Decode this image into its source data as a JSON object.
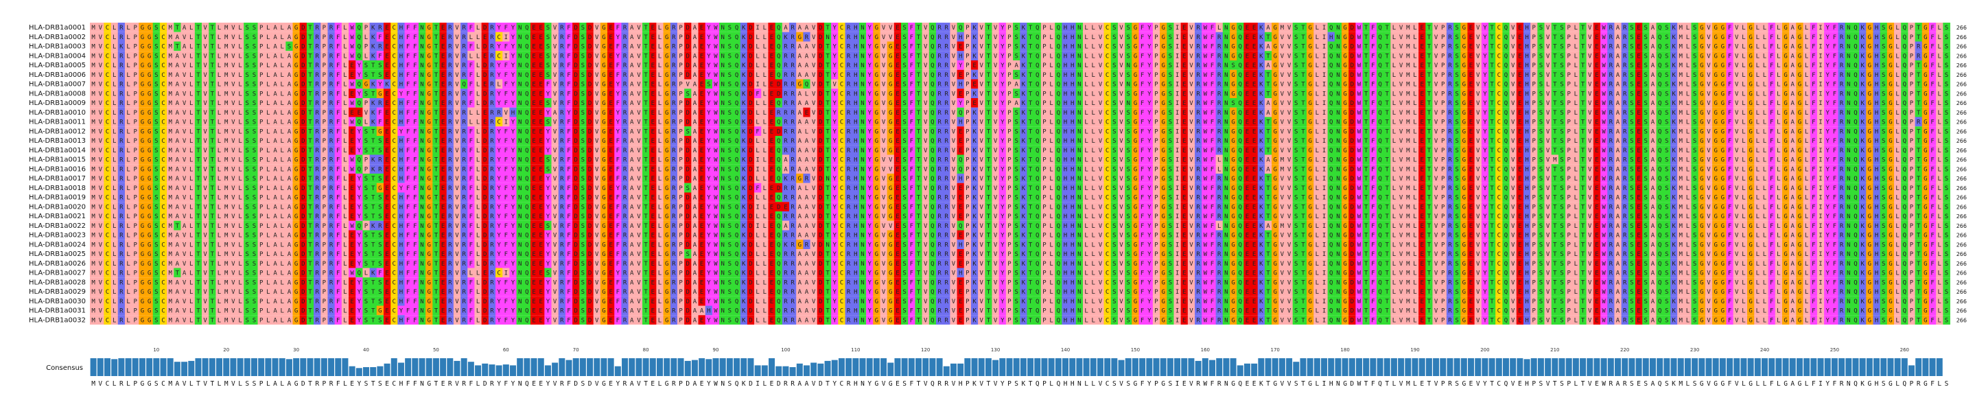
{
  "alignment": {
    "sequences": [
      {
        "name": "HLA-DRB1a0001",
        "seq": "MVCLRLPGGSCMTALTVTLMVLSSPLALAGDTRPRFLWQPKRECHFFNGTERVRFLDRYFYNQEESVRFDSDVGEFRAVTELGRPDAEYWNSQKDILEQARAAVDTYCRHNYGVVESFTVQRRVQPKVTVYPSKTQPLQHHNLLVCSVSGFYPGSIEVRWFLNGQEEKAGMVSTGLIQNGDWTFQTLVMLETVPRSGEVYTCQVEHPSVTSPLTVEWRARSESAQSKMLSGVGGFVLGLLFLGAGLFIYFRNQKGHSGLQPTGFLS",
        "len": "266"
      },
      {
        "name": "HLA-DRB1a0002",
        "seq": "MVCLRLPGGSCMAVLTVTLMVLSSPLALAGDTRPRFLWQLKFECHFFNGTERVRLLERCIYNQEESVRFDSDVGEYRAVTELGRPDAEYWNSQKDLLEQKRGRVDNYCRHNYGVVESFTVQRRVHPKVTVYPSKTQPLQHHNLLVCSVSGFYPGSIEVRWFRNGQEEKTGVVSTGLIHNGDWTFQTLVMLETVPRSGEVYTCQVEHPSVTSPLTVEWRARSESAQSKMLSGVGGFVLGLLFLGAGLFIYFRNQKGHSGLQPTGFLS",
        "len": "266"
      },
      {
        "name": "HLA-DRB1a0003",
        "seq": "MVCLKLPGGSCMTALTVTLMVLSSPLALSGDTRPRFLWQPKRECHFFNGTERVRFLDRYFYNQEESVRFDSDVGEFRAVTELGRPDAEYWNSQKDLLEQRRAAVDTYCRHNYGVGESFTVQRRVEPKVTVYPSKTQPLQHHNLLVCSVSGFYPGSIEVRWFRNGQEEKAGVVSTGLIQNGDWTFQTLVMLETVPRSGEVYTCQVEHPSVTSPLTVEWRARSESAQSKMLSGVGGFVLGLLFLGAGLFIYFRNQKGHSGLQPRGFLS",
        "len": "266"
      },
      {
        "name": "HLA-DRB1a0004",
        "seq": "MVCLRLPGGSCMAVLTVTLMVLSSPLALAGDTRPRFLWQLKFECHFFNGTERVRLLERCIYNQEESVRFDSDVGEYRAVTELGRPDAEYWNSQKDLLEQRRAAVDTYCRHNYGVGESFTVQRRVHPKVTVYPSKTQPLQHHNLLVCSVSGFYPGSIEVRWFRNGQEEKTGVVSTGLIQNGDWTFQTLVMLETVPRSGEVYTCQVEHPSVTSPLTVEWRARSESAQSKMLSGVGGFVLGLLFLGAGLFIYFRNQKGHSGLQPRGFLS",
        "len": "266"
      },
      {
        "name": "HLA-DRB1a0005",
        "seq": "MVCLRLPGGSCMAVLTVTLMVLSSPLALAGDTRPRFLEYSTSECHFFNGTERVRFLDRYFYNQEESVRFDSDVGEFRAVTELGRPDAEYWNSQKDLLEQRRAAVDTYCRHNYGVGESFTVQRRVYPEVTVYPAKTQPLQHHNLLVCSVNGFYPGSIEVRWFRNSQEEKAGVVSTGLIQNGDWTFQTLVMLETVPRSGEVYTCQVEHPSVTSPLTVEWRARSESAQSKMLSGVGGFVLGLLFLGAGLFIYFRNQKGHSGLQPTGFLS",
        "len": "266"
      },
      {
        "name": "HLA-DRB1a0006",
        "seq": "MVCLRLPGGSCMAVLTVTLMVLSSPLALAGDTRPRFLEYSTSECHFFNGTERVRFLDRYFYNQEESVRFDSDVGEFRAVTELGRPDAEYWNSQKDLLEQRRAAVDTYCRHNYGVGESFTVQRRVEPKVTVYPSKTQPLQHHNLLVCSVSGFYPGSIEVRWFRNGQEEKTGVVSTGLIQNGDWTFQTLVMLETVPRSGEVYTCQVEHPSVTSPLTVEWRARSESAQSKMLSGVGGFVLGLLFLGAGLFIYFRNQKGHSGLQPTGFLS",
        "len": "266"
      },
      {
        "name": "HLA-DRB1a0007",
        "seq": "MVCLRLPGGSCMAVLTVTLMVLSSPLALAGDTRPRFLWQGKYKCHFFNGTERVQFLERLFYNQEEFVRFDSDVGEYRAVTELGRPVAESWNSQKDILEDRRGQVDTVCRHNYGVGESFTVQRRVHPEVTVYPAKTQPLQHHNLLVCSVNGFYPGSIEVRWFRNGQEEKTGVVSTGLIQNGDWTFQTLVMLETVPRSGEVYTCQVEHPSLTSPLTVEWRARSESAQSKMLSGVGGFVLGLLFLGAGLFIYFRNQKGHSGLQPTGFLS",
        "len": "266"
      },
      {
        "name": "HLA-DRB1a0008",
        "seq": "MVCLRLPGGSCMAVLTVTLMVLSSPLALAGDTRPRFLEYSTGECYFFNGTERVRFLDRYFYNQEEYVRFDSDVGEYRAVTELGRPSAEYWNSQKDFLEDRRALVDTYCRHNYGVGESFTVQRRVEPKVTVYPSKTQPLQHHNLLVCSVSGFYPGSIEVRWFRNGQEEKTGVVSTGLIQNGDWTFQTLVMLETVPRSGEVYTCQVEHPSVTSPLTVEWRARSESAQSKMLSGVGGFVLGLLFLGAGLFIYFRNQKGHSGLQPTGFLS",
        "len": "266"
      },
      {
        "name": "HLA-DRB1a0009",
        "seq": "MVCLRLPGGSCMAVLTVTLMVLSSPLALAGDTRPRFLWQPKRECHFFNGTERVRFLDRYFYNQEESVRFDSDVGEFRAVTELGRPDAEYWNSQKDLLEQRRAAVDTYCRHNYGVGESFTVQRRVYPEVTVYPAKTQPLQHHNLLVCSVNGFYPGSIEVRWFRNSQEEKAGVVSTGLIQNGDWTFQTLVMLETVPRSGEVYTCQVEHPSVTSPLTVEWRARSESAQSKMLSGVGGFVLGLLFLGAGLFIYFRNQKGHSGLQPTGFLS",
        "len": "266"
      },
      {
        "name": "HLA-DRB1a0010",
        "seq": "MVCLRLPGGSCMAVLTVTLMVLSSPLALAGDTRPRFLEEVKFECHFFNGTERVRLLERRVHNQEEYARYDSDVGEYRAVTELGRPDAEYWNSQKDLLERRRAEVDTYCRHNYGVGESFTVQRRVQPKVTVYPSKTQPLQHHNLLVCSVSGFYPGSIEVRWFRNGQEEKAGVVSTGLIQNGDWTFQTLVMLETVPRSGEVYTCQVEHPSVTSPLTVEWRARSESAQSKMLSGVGGFVLGLLFLGAGLFIYFRNQKGHSGLQPTGFLS",
        "len": "266"
      },
      {
        "name": "HLA-DRB1a0011",
        "seq": "MVCLRLPGGSCMAVLTVTLMVLSSPLALAGDTRPRFLWQLKFECHFFNGTERVRLLERCIYNQEESVRFDSDVGEYRAVTELGRPDAEYWNSQKDLLEQRRAAVDTYCRHNYGVGESFTVQRRVHPKVTVYPSKTQPLQHHNLLVCSVSGFYPGSIEVRWFRNGQEEKTGVVSTGLIQNGDWTFQTLVMLETVPRSGEVYTCQVEHPSVTSPLTVEWRARSESAQSKMLSGVGGFVLGLLFLGAGLFIYFRNQKGHSGLQPRGFLS",
        "len": "266"
      },
      {
        "name": "HLA-DRB1a0012",
        "seq": "MVCLRLPGGSCMAVLTVTLMVLSSPLALAGDTRPRFLEYSTGECYFFNGTERVRFLDRYFYNQEEYVRFDSDVGEYRAVTELGRPSAEYWNSQKDFLEDRRALVDTYCRHNYGVGESFTVQRRVEPKVTVYPSKTQPLQHHNLLVCSVSGFYPGSIEVRWFRNGQEEKTGVVSTGLIQNGDWTFQTLVMLETVPRSGEVYTCQVEHPSVTSPLTVEWRARSESAQSKMLSGVGGFVLGLLFLGAGLFIYFRNQKGHSGLQPTGFLS",
        "len": "266"
      },
      {
        "name": "HLA-DRB1a0013",
        "seq": "MVCLRLPGGSCMAVLTVTLMVLSSPLALAGDTRPRFLEYSTSECHFFNGTERVRFLDRYFYNQEEYVRFDSDVGEFRAVTELGRPDAEYWNSQKDLLEQRRAAVDTYCRHNYGVGESFTVQRRVEPKVTVYPSKTQPLQHHNLLVCSVSGFYPGSIEVRWFRNGQEEKTGVVSTGLIQNGDWTFQTLVMLETVPRSGEVYTCQVEHPSVTSPLTVEWRARSESAQSKMLSGVGGFVLGLLFLGAGLFIYFRNQKGHSGLQPTGFLS",
        "len": "266"
      },
      {
        "name": "HLA-DRB1a0014",
        "seq": "MVCLRLPGGSCMAVLTVTLMVLSSPLALAGDTRPRFLEYSTSECHFFNGTERVRFLDRYFYNQEEYVRFDSDVGEFRAVTELGRPDAEYWNSQKDLLEQRRAAVDTYCRHNYGVGESFTVQRRVEPKVTVYPSKTQPLQHHNLLVCSVSGFYPGSIEVRWFRNGQEEKTGVVSTGLIQNGDWTFQTLVMLETVPRSGEVYTCQVEHPSVTSPLTVEWRARSESAQSKMLSGVGGFVLGLLFLGAGLFIYFRNQKGHSGLQPTGFLS",
        "len": "266"
      },
      {
        "name": "HLA-DRB1a0015",
        "seq": "MVCLRLPGGSCMAVLTVTLMVLSSPLALAGDTRPRFLWQPKRECHFFNGTERVRFLDRYFYNQEESVRFDSDVGEFRAVTELGRPDAEYWNSQKDILEQARAAVDTYCRHNYGVVESFTVQRRVQPKVTVYPSKTQPLQHHNLLVCSVSGFYPGSIEVRWFLNGQEEKAGMVSTGLIQNGDWTFQTLVMLETVPRSGEVYTCQVEHPSVMSPLTVEWRARSESAQSKMLSGVGGFVLGLLFLGAGLFIYFRNQKGHSGLQPTGFLS",
        "len": "266"
      },
      {
        "name": "HLA-DRB1a0016",
        "seq": "MVCLRLPGGSCMAVLTVTLMVLSSPLALAGDTRPRFLWQPKRECHFFNGTERVRFLDRYFYNQEESVRFDSDVGEFRAVTELGRPDAEYWNSQKDILEQARAAVDTYCRHNYGVVESFTVQRRVQPKVTVYPSKTQPLQHHNLLVCSVSGFYPGSIEVRWFLNGQEEKAGMVSTGLIQNGDWTFQTLVMLETVPRSGEVYTCQVEHPSVTSPLTVEWRARSESAQSKMLSGVGGFVLGLLFLGAGLFIYFRNQKGHSGLQPTGFLS",
        "len": "266"
      },
      {
        "name": "HLA-DRB1a0017",
        "seq": "MVCLRLPGGSCMAVLTVTLMVLSSPLALAGDTRPRFLEYSTSECHFFNGTERVRFLDRYFYNQEEYVRFDSDVGEFRAVTELGRPDAEYWNSQKDLLEQKRGRVDNYCRHNYGVGESFTVQRRVHPKVTVYPSKTQPLQHHNLLVCSVSGFYPGSIEVRWFRNGQEEKTGVVSTGLIQNGDWTFQTLVMLETVPRSGEVYTCQVEHPSVTSPLTVEWRARSESAQSKMLSGVGGFVLGLLFLGAGLFIYFRNQKGHSGLQPTGFLS",
        "len": "266"
      },
      {
        "name": "HLA-DRB1a0018",
        "seq": "MVCLRLPGGSCMAVLTVTLMVLSSPLALAGDTRPRFLEYSTGECYFFNGTERVRFLDRYFYNQEEYVRFDSDVGEYRAVTELGRPSAEYWNSQKDFLEDRRALVDTYCRHNYGVGESFTVQRRVEPKVTVYPSKTQPLQHHNLLVCSVSGFYPGSIEVRWFRNGQEEKTGVVSTGLIQNGDWTFQTLVMLETVPRSGEVYTCQVEHPSVTSPLTVEWRARSESAQSKMLSGVGGFVLGLLFLGAGLFIYFRNQKGHSGLQPTGFLS",
        "len": "266"
      },
      {
        "name": "HLA-DRB1a0019",
        "seq": "MVCLRLPGGSCMAVLTVTLMVLSSPLALAGDTRPRFLEYSTSECHFFNGTERVRFLDRYFYNQEEYVRFDSDVGEFRAVTELGRPDAEYWNSQKDLLEQRRAAVDTYCRHNYGVGESFTVQRRVEPKVTVYPSKTQPLQHHNLLVCSVSGFYPGSIEVRWFRNGQEEKTGVVSTGLIQNGDWTFQTLVMLETVPRSGEVYTCQVEHPSVTSPLTVEWRARSESAQSKMLSGVGGFVLGLLFLGAGLFIYFRNQKGHSGLQPTGFLS",
        "len": "266"
      },
      {
        "name": "HLA-DRB1a0020",
        "seq": "MVCLRLPGGSCMAVLTVTLMVLSSPLALAGDTRPRFLEYSTSECHFFNGTERVRFLDRYFYNQEEYVRFDSDVGEFRAVTELGRPDAEYWNSQKDILEDERAAVDTYCRHNYGVGESFTVQRRVEPKVTVYPSKTQPLQHHNLLVCSVSGFYPGSIEVRWFRNGQEEKTGVVSTGLIQNGDWTFQTLVMLETVPRSGEVYTCQVEHPSVTSPLTVEWRARSESAQSKMLSGVGGFVLGLLFLGAGLFIYFRNQKGHSGLQPTGFLS",
        "len": "266"
      },
      {
        "name": "HLA-DRB1a0021",
        "seq": "MVCLRLPGGSCMAVLTVTLMVLSSPLALAGDTRPRFLEYSTSECHFFNGTERVRFLDRYFYNQEEYVRFDSDVGEFRAVTELGRPDAEYWNSQKDLLEQRRAAVDTYCRHNYGVGESFTVQRRVEPKVTVYPSKTQPLQHHNLLVCSVSGFYPGSIEVRWFRNGQEEKTGVVSTGLIQNGDWTFQTLVMLETVPRSGEVYTCQVEHPSVTSPLTVEWRARSESAQSKMLSGVGGFVLGLLFLGAGLFIYFRNQKGHSGLQPTGFLS",
        "len": "266"
      },
      {
        "name": "HLA-DRB1a0022",
        "seq": "MVCLRLPGGSCMTALTVTLMVLSSPLALAGDTRPRFLWQPKRECHFFNGTERVRFLDRYFYNQEESVRFDSDVGEFRAVTELGRPDAEYWNSQKDILEQARAAVDTYCRHNYGVVESFTVQRRVQPKVTVYPSKTQPLQHHNLLVCSVSGFYPGSIEVRWFLNGQEEKAGMVSTGLIQNGDWTFQTLVMLETVPRSGEVYTCQVEHPSVTSPLTVEWRARSESAQSKMLSGVGGFVLGLLFLGAGLFIYFRNQKGHSGLQPTGFLS",
        "len": "266"
      },
      {
        "name": "HLA-DRB1a0023",
        "seq": "MVCLRLPGGSCMAVLTVTLMVLSSPLALAGDTRPRFLEYSTSECHFFNGTERVRFLDRYFYNQEEYVRFDSDVGEFRAVTELGRPDAEYWNSQKDLLEQRRAAVDTYCRHNYGVGESFTVQRRVEPKVTVYPSKTQPLQHHNLLVCSVSGFYPGSIEVRWFRNGQEEKTGVVSTGLIQNGDWTFQTLVMLETVPRSGEVYTCQVEHPSVTSPLTVEWRARSESAQSKMLSGVGGFVLGLLFLGAGLFIYFRNQKGHSGLQPTGFLS",
        "len": "266"
      },
      {
        "name": "HLA-DRB1a0024",
        "seq": "MVCLRLPGGSCMAVLTVTLMVLSSPLALAGDTRPRFLEYSTSECHFFNGTERVRFLDRYFYNQEEYVRFDSDVGEFRAVTELGRPDAEYWNSQKDLLEQKRGRVDNYCRHNYGVGESFTVQRRVHPKVTVYPSKTQPLQHHNLLVCSVSGFYPGSIEVRWFRNGQEEKTGVVSTGLIQNGDWTFQTLVMLETVPRSGEVYTCQVEHPSVTSPLTVEWRARSESAQSKMLSGVGGFVLGLLFLGAGLFIYFRNQKGHSGLQPTGFLS",
        "len": "266"
      },
      {
        "name": "HLA-DRB1a0025",
        "seq": "MVCLRLPGGSCMAVLTVTLMVLSSPLALAGDTRPRFLEYSTSECHFFNGTERVRFLDRYFYNQEEYVRFDSDVGEFRAVTELGRPSAEYWNSQKDLLEQRRAAVDTYCRHNYGVGESFTVQRRVEPKVTVYPSKTQPLQHHNLLVCSVSGFYPGSIEVRWFRNGQEEKTGVVSTGLIQNGDWTFQTLVMLETVPRSGEVYTCQVEHPSVTSPLTVEWRARSESAQSKMLSGVGGFVLGLLFLGAGLFIYFRNQKGHSGLQPTGFLS",
        "len": "266"
      },
      {
        "name": "HLA-DRB1a0026",
        "seq": "MVCLRLPGGSCMAVLTVTLMVLSSPLALAGDTRPRFLEYSTSECHFFNGTERVRFLDRYFYNQEEYVRFDSDVGEFRAVTELGRPDAEYWNSQKDLLEQRRAAVDTYCRHNYGVGESFTVQRRVEPKVTVYPSKTQPLQHHNLLVCSVSGFYPGSIEVRWFRNGQEEKTGVVSTGLIQNGDWTFQTLVMLETVPRSGEVYTCQVEHPSVTSPLTVEWRARSESAQSKMLSGVGGFVLGLLFLGAGLFIYFRNQKGHSGLQPTGFLS",
        "len": "266"
      },
      {
        "name": "HLA-DRB1a0027",
        "seq": "MVCLRLPGGSCMTALTVTLMVLSSPLALAGDTRPRFLWQLKFECHFFNGTERVRLLERCIYNQEESVRFDSDVGEYRAVTELGRPDAEYWNSQKDLLEQRRAAVDTYCRHNYGVGESFTVQRRVHPKVTVYPSKTQPLQHHNLLVCSVSGFYPGSIEVRWFRNGQEEKTGVVSTGLIQNGDWTFQTLVMLETVPRSGEVYTCQVEHPSVTSPLTVEWRARSESAQSKMLSGVGGFVLGLLFLGAGLFIYFRNQKGHSGLQPTGFLS",
        "len": "266"
      },
      {
        "name": "HLA-DRB1a0028",
        "seq": "MVCLRLPGGSCMAVLTVTLMVLSSPLALAGDTRPRFLEYSTSECHFFNGTERVRFLDRYFYNQEEYVRFDSDVGEFRAVTELGRPDAEYWNSQKDLLEQRRAAVDTYCRHNYGVGESFTVQRRVEPKVTVYPSKTQPLQHHNLLVCSVSGFYPGSIEVRWFRNGQEEKTGVVSTGLIQNGDWTFQTLVMLETVPRSGEVYTCQVEHPSVTSPLTVEWRARSESAQSKMLSGVGGFVLGLLFLGAGLFIYFRNQKGHSGLQPTGFLS",
        "len": "266"
      },
      {
        "name": "HLA-DRB1a0029",
        "seq": "MVCLRLPGGSCMAVLTVTLMVLSSPLALAGDTRPRFLEYSTSECHFFNGTERVRFLDRYFYNQEEYVRFDSDVGEFRAVTELGRPDAEYWNSQKDLLEQRRAAVDTYCRHNYGVGESFTVQRRVEPKVTVYPSKTQPLQHHNLLVCSVSGFYPGSIEVRWFRNGQEEKTGVVSTGLIQNGDWTFQTLVMLETVPRSGEVYTCQVEHPSVTSPLTVEWRARSESAQSKMLSGVGGFVLGLLFLGAGLFIYFRNQKGHSGLQPTGFLS",
        "len": "266"
      },
      {
        "name": "HLA-DRB1a0030",
        "seq": "MVCLRLPGGSCMAVLTVTLMVLSSPLALAGDTRPRFLEYSTSECHFFNGTERVRFLDRYFYNQEEYVRFDSDVGEFRAVTELGRPDAEYWNSQKDLLEQRRAAVDTYCRHNYGVGESFTVQRRVEPKVTVYPSKTQPLQHHNLLVCSVSGFYPGSIEVRWFRNGQEEKTGVVSTGLIQNGDWTFQTLVMLETVPRSGEVYTCQVEHPSVTSPLTVEWRARSESAQSKMLSGVGGFVLGLLFLGAGLFIYFRNQKGHSGLQPTGFLS",
        "len": "266"
      },
      {
        "name": "HLA-DRB1a0031",
        "seq": "MVCLRLPGGSCMAVLTVTLMVLSSPLALAGDTRPRFLEYSTGECYFFNGTERVRFLDRYFYNQEEYVRFDSDVGEYRAVTELGRPDAAHWNSQKDLLEQRRAAVDTYCRHNYGVGESFTVQRRVEPKVTVYPSKTQPLQHHNLLVCSVSGFYPGSIEVRWFRNGQEEKTGVVSTGLIQNGDWTFQTLVMLETVPRSGEVYTCQVEHPSVTSPLTVEWRARSESAQSKMLSGVGGFVLGLLFLGAGLFIYFRNQKGHSGLQPTGFLS",
        "len": "266"
      },
      {
        "name": "HLA-DRB1a0032",
        "seq": "MVCLRLPGGSCMAVLTVTLMVLSSPLALAGDTRPRFLEYSTSECHFFNGTERVRFLDRYFYNQEEYVRFDSDVGEFRAVTELGRPDAEYWNSQKDLLEQRRAAVDTYCRHNYGVGESFTVQRRVEPKVTVYPSKTQPLQHHNLLVCSVSGFYPGSIEVRWFRNGQEEKTGVVSTGLIQNGDWTFQTLVMLETVPRSGEVYTCQVEHPSVTSPLTVEWRARSESAQSKMLSGVGGFVLGLLFLGAGLFIYFRNQKGHSGLQPTGFLS",
        "len": "266"
      }
    ],
    "ruler_ticks": [
      "10",
      "20",
      "30",
      "40",
      "50",
      "60",
      "70",
      "80",
      "90",
      "100",
      "110",
      "120",
      "130",
      "140",
      "150",
      "160",
      "170",
      "180",
      "190",
      "200",
      "210",
      "220",
      "230",
      "240",
      "250",
      "260"
    ],
    "consensus_label": "Consensus",
    "consensus_seq": "MVCLRLPGGSCMAVLTVTLMVLSSPLALAGDTRPRFLEYSTSECHFFNGTERVRFLDRYFYNQEEYVRFDSDVGEYRAVTELGRPDAEYWNSQKDILEDRRAAVDTYCRHNYGVGESFTVQRRVHPKVTVYPSKTQPLQHHNLLVCSVSGFYPGSIEVRWFRNGQEEKTGVVSTGLIHNGDWTFQTLVMLETVPRSGEVYTCQVEHPSVTSPLTVEWRARSESAQSKMLSGVGGFVLGLLFLGAGLFIYFRNQKGHSGLQPRGFLS",
    "consensus_conservation": [
      1.0,
      1.0,
      1.0,
      0.95,
      1.0,
      1.0,
      1.0,
      1.0,
      1.0,
      1.0,
      1.0,
      1.0,
      0.8,
      0.8,
      0.85,
      1.0,
      1.0,
      1.0,
      1.0,
      1.0,
      1.0,
      1.0,
      1.0,
      1.0,
      1.0,
      1.0,
      1.0,
      1.0,
      0.95,
      1.0,
      1.0,
      1.0,
      1.0,
      1.0,
      1.0,
      1.0,
      1.0,
      0.55,
      0.45,
      0.5,
      0.5,
      0.55,
      0.7,
      1.0,
      0.75,
      1.0,
      1.0,
      1.0,
      1.0,
      1.0,
      1.0,
      1.0,
      0.85,
      1.0,
      0.8,
      0.6,
      0.7,
      0.65,
      0.6,
      0.65,
      0.6,
      1.0,
      1.0,
      1.0,
      1.0,
      0.6,
      0.75,
      1.0,
      0.9,
      1.0,
      1.0,
      1.0,
      1.0,
      1.0,
      1.0,
      0.55,
      1.0,
      1.0,
      1.0,
      1.0,
      1.0,
      1.0,
      1.0,
      1.0,
      1.0,
      0.85,
      0.9,
      1.0,
      0.95,
      1.0,
      1.0,
      1.0,
      1.0,
      1.0,
      1.0,
      0.6,
      0.6,
      1.0,
      0.55,
      0.55,
      0.5,
      0.7,
      0.6,
      0.75,
      0.7,
      0.85,
      0.9,
      1.0,
      1.0,
      1.0,
      1.0,
      1.0,
      1.0,
      1.0,
      0.75,
      1.0,
      1.0,
      1.0,
      1.0,
      1.0,
      1.0,
      1.0,
      0.55,
      0.7,
      0.7,
      1.0,
      1.0,
      1.0,
      1.0,
      0.9,
      1.0,
      1.0,
      1.0,
      1.0,
      1.0,
      1.0,
      1.0,
      1.0,
      1.0,
      1.0,
      1.0,
      1.0,
      1.0,
      1.0,
      1.0,
      1.0,
      1.0,
      0.9,
      1.0,
      1.0,
      1.0,
      1.0,
      1.0,
      1.0,
      1.0,
      1.0,
      1.0,
      1.0,
      0.85,
      1.0,
      0.9,
      1.0,
      1.0,
      1.0,
      0.6,
      0.7,
      0.7,
      1.0,
      1.0,
      1.0,
      1.0,
      1.0,
      0.8,
      1.0,
      1.0,
      1.0,
      1.0,
      1.0,
      1.0,
      1.0,
      1.0,
      1.0,
      1.0,
      1.0,
      1.0,
      1.0,
      1.0,
      1.0,
      1.0,
      1.0,
      1.0,
      1.0,
      1.0,
      1.0,
      1.0,
      1.0,
      1.0,
      1.0,
      1.0,
      1.0,
      1.0,
      1.0,
      1.0,
      1.0,
      1.0,
      0.95,
      1.0,
      1.0,
      1.0,
      1.0,
      1.0,
      1.0,
      1.0,
      1.0,
      1.0,
      1.0,
      1.0,
      1.0,
      1.0,
      1.0,
      1.0,
      1.0,
      1.0,
      1.0,
      1.0,
      1.0,
      1.0,
      1.0,
      1.0,
      1.0,
      1.0,
      1.0,
      1.0,
      1.0,
      1.0,
      1.0,
      1.0,
      1.0,
      1.0,
      1.0,
      1.0,
      1.0,
      1.0,
      1.0,
      1.0,
      1.0,
      1.0,
      1.0,
      1.0,
      1.0,
      1.0,
      1.0,
      1.0,
      1.0,
      1.0,
      1.0,
      1.0,
      1.0,
      1.0,
      1.0,
      0.6,
      1.0,
      1.0,
      1.0,
      1.0
    ]
  },
  "residue_colors": {
    "A": "#ffafaf",
    "I": "#ffafaf",
    "L": "#ffafaf",
    "M": "#ffafaf",
    "V": "#ffafaf",
    "P": "#ffafaf",
    "G": "#ffa500",
    "S": "#33dd33",
    "T": "#33dd33",
    "N": "#33dd33",
    "Q": "#33dd33",
    "D": "#ee0000",
    "E": "#ee0000",
    "K": "#6f6ff0",
    "R": "#6f6ff0",
    "H": "#6f6ff0",
    "F": "#ff44ff",
    "W": "#ff44ff",
    "Y": "#ff44ff",
    "C": "#ffd700"
  },
  "conservation_bar_color": "#2f7db8"
}
